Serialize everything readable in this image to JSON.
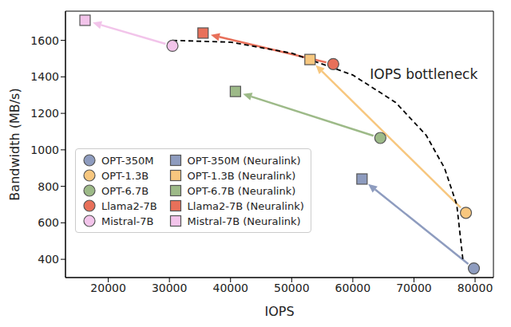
{
  "chart_data": {
    "type": "scatter",
    "x_label": "IOPS",
    "y_label": "Bandwidth (MB/s)",
    "xlim": [
      13000,
      83000
    ],
    "xticks": [
      20000,
      30000,
      40000,
      50000,
      60000,
      70000,
      80000
    ],
    "ylim": [
      300,
      1760
    ],
    "yticks": [
      400,
      600,
      800,
      1000,
      1200,
      1400,
      1600
    ],
    "grid": false,
    "legend": "lower left",
    "series": [
      {
        "name": "OPT-350M",
        "color": "#8e9cbf",
        "marker": "circle",
        "x": [
          79800
        ],
        "values": [
          350
        ]
      },
      {
        "name": "OPT-1.3B",
        "color": "#f7c77f",
        "marker": "circle",
        "x": [
          78500
        ],
        "values": [
          655
        ]
      },
      {
        "name": "OPT-6.7B",
        "color": "#9dba88",
        "marker": "circle",
        "x": [
          64500
        ],
        "values": [
          1065
        ]
      },
      {
        "name": "Llama2-7B",
        "color": "#e8705a",
        "marker": "circle",
        "x": [
          56800
        ],
        "values": [
          1470
        ]
      },
      {
        "name": "Mistral-7B",
        "color": "#f2c4ea",
        "marker": "circle",
        "x": [
          30500
        ],
        "values": [
          1570
        ]
      },
      {
        "name": "OPT-350M (Neuralink)",
        "color": "#8e9cbf",
        "marker": "square",
        "x": [
          61500
        ],
        "values": [
          840
        ]
      },
      {
        "name": "OPT-1.3B (Neuralink)",
        "color": "#f7c77f",
        "marker": "square",
        "x": [
          53000
        ],
        "values": [
          1495
        ]
      },
      {
        "name": "OPT-6.7B (Neuralink)",
        "color": "#9dba88",
        "marker": "square",
        "x": [
          40800
        ],
        "values": [
          1320
        ]
      },
      {
        "name": "Llama2-7B (Neuralink)",
        "color": "#e8705a",
        "marker": "square",
        "x": [
          35500
        ],
        "values": [
          1640
        ]
      },
      {
        "name": "Mistral-7B (Neuralink)",
        "color": "#f2c4ea",
        "marker": "square",
        "x": [
          16200
        ],
        "values": [
          1710
        ]
      }
    ],
    "arrows": [
      {
        "from": "OPT-350M",
        "to": "OPT-350M (Neuralink)"
      },
      {
        "from": "OPT-1.3B",
        "to": "OPT-1.3B (Neuralink)"
      },
      {
        "from": "OPT-6.7B",
        "to": "OPT-6.7B (Neuralink)"
      },
      {
        "from": "Llama2-7B",
        "to": "Llama2-7B (Neuralink)"
      },
      {
        "from": "Mistral-7B",
        "to": "Mistral-7B (Neuralink)"
      }
    ],
    "curve": {
      "x": [
        30500,
        40000,
        50000,
        60000,
        67000,
        72000,
        75000,
        77000,
        78000
      ],
      "y": [
        1600,
        1590,
        1530,
        1410,
        1260,
        1080,
        900,
        700,
        400
      ],
      "line_style": "dashed",
      "color": "#000000"
    },
    "annotations": [
      {
        "text": "IOPS bottleneck",
        "x": 62800,
        "y": 1410
      }
    ]
  }
}
